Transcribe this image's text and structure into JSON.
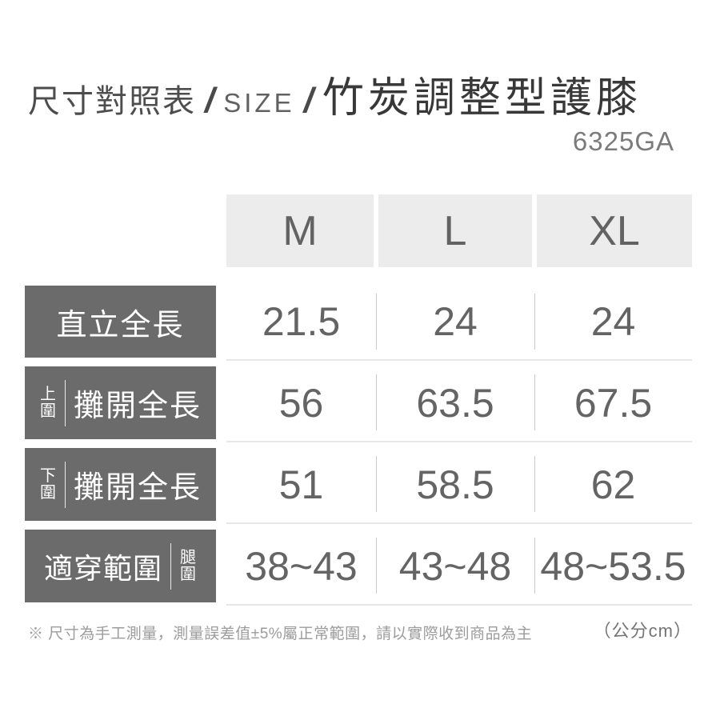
{
  "title": {
    "table_label": "尺寸對照表",
    "slash": "/",
    "size_label": "SIZE",
    "product_name": "竹炭調整型護膝",
    "model_code": "6325GA"
  },
  "chart_data": {
    "type": "table",
    "title": "尺寸對照表 SIZE 竹炭調整型護膝",
    "model": "6325GA",
    "unit": "公分cm",
    "columns": [
      "M",
      "L",
      "XL"
    ],
    "rows": [
      {
        "label_side": "",
        "label_main": "直立全長",
        "values": [
          "21.5",
          "24",
          "24"
        ]
      },
      {
        "label_side": "上圍",
        "label_main": "攤開全長",
        "values": [
          "56",
          "63.5",
          "67.5"
        ]
      },
      {
        "label_side": "下圍",
        "label_main": "攤開全長",
        "values": [
          "51",
          "58.5",
          "62"
        ]
      },
      {
        "label_side": "腿圍",
        "label_main": "適穿範圍",
        "values": [
          "38~43",
          "43~48",
          "48~53.5"
        ]
      }
    ]
  },
  "footer": {
    "note": "※ 尺寸為手工測量，測量誤差值±5%屬正常範圍，請以實際收到商品為主",
    "unit_label": "（公分cm）"
  },
  "colors": {
    "label_cell_bg": "#6b6b6b",
    "header_cell_bg": "#ececec",
    "value_text": "#646464",
    "title_text": "#383838",
    "note_text": "#9c9c9c"
  }
}
